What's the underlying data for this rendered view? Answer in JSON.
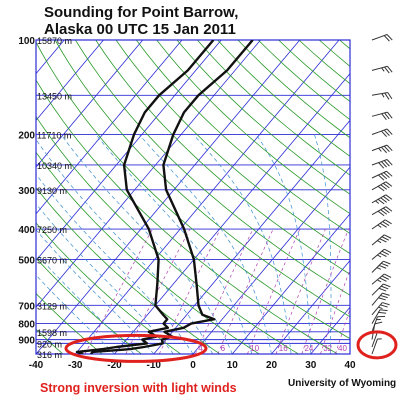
{
  "title_lines": [
    "Sounding for Point Barrow,",
    "Alaska 00 UTC 15 Jan 2011"
  ],
  "caption": "Strong inversion with light winds",
  "credit": "University of Wyoming",
  "colors": {
    "frame": "#2b2bd6",
    "isobar": "#2b2bd6",
    "isotherm": "#2b2bd6",
    "dry_adiabat": "#2a9a2a",
    "moist_adiabat": "#3a8fd0",
    "mixing_ratio": "#b040b0",
    "sounding": "#111111",
    "highlight": "#e0221f"
  },
  "chart_data": {
    "type": "line",
    "title": "Sounding for Point Barrow, Alaska 00 UTC 15 Jan 2011",
    "xlabel": "",
    "ylabel": "",
    "x_ticks": [
      -40,
      -30,
      -20,
      -10,
      0,
      10,
      20,
      30,
      40
    ],
    "xlim": [
      -40,
      40
    ],
    "ylim": [
      1000,
      100
    ],
    "y_scale": "log",
    "pressure_ticks": [
      {
        "p": 100,
        "label": "100",
        "height": "15870 m"
      },
      {
        "p": 150,
        "label": "",
        "height": "13450 m"
      },
      {
        "p": 200,
        "label": "200",
        "height": "11710 m"
      },
      {
        "p": 250,
        "label": "",
        "height": "10340 m"
      },
      {
        "p": 300,
        "label": "300",
        "height": "9130 m"
      },
      {
        "p": 400,
        "label": "400",
        "height": "7250 m"
      },
      {
        "p": 500,
        "label": "500",
        "height": "5670 m"
      },
      {
        "p": 700,
        "label": "700",
        "height": "3129 m"
      },
      {
        "p": 800,
        "label": "800",
        "height": ""
      },
      {
        "p": 850,
        "label": "",
        "height": "1598 m"
      },
      {
        "p": 900,
        "label": "900",
        "height": ""
      },
      {
        "p": 925,
        "label": "",
        "height": "920 m"
      },
      {
        "p": 1000,
        "label": "",
        "height": "316 m"
      }
    ],
    "mixing_ratio_labels": [
      "4",
      "6",
      "10",
      "16",
      "24",
      "32",
      "40"
    ],
    "series": [
      {
        "points": [
          {
            "p": 1000,
            "t": -26
          },
          {
            "p": 985,
            "t": -26
          },
          {
            "p": 965,
            "t": -17
          },
          {
            "p": 950,
            "t": -14
          },
          {
            "p": 925,
            "t": -10
          },
          {
            "p": 900,
            "t": -11
          },
          {
            "p": 880,
            "t": -9
          },
          {
            "p": 850,
            "t": -12
          },
          {
            "p": 825,
            "t": -8
          },
          {
            "p": 800,
            "t": -7
          },
          {
            "p": 775,
            "t": -2
          },
          {
            "p": 750,
            "t": -6
          },
          {
            "p": 700,
            "t": -9
          },
          {
            "p": 600,
            "t": -14
          },
          {
            "p": 500,
            "t": -20
          },
          {
            "p": 400,
            "t": -29
          },
          {
            "p": 300,
            "t": -42
          },
          {
            "p": 250,
            "t": -48
          },
          {
            "p": 200,
            "t": -52
          },
          {
            "p": 170,
            "t": -54
          },
          {
            "p": 150,
            "t": -54
          },
          {
            "p": 125,
            "t": -52
          },
          {
            "p": 100,
            "t": -52
          }
        ]
      },
      {
        "points": [
          {
            "p": 1000,
            "t": -28
          },
          {
            "p": 985,
            "t": -30
          },
          {
            "p": 965,
            "t": -24
          },
          {
            "p": 950,
            "t": -21
          },
          {
            "p": 925,
            "t": -14
          },
          {
            "p": 900,
            "t": -16
          },
          {
            "p": 880,
            "t": -13
          },
          {
            "p": 850,
            "t": -16
          },
          {
            "p": 825,
            "t": -12
          },
          {
            "p": 800,
            "t": -14
          },
          {
            "p": 775,
            "t": -14
          },
          {
            "p": 750,
            "t": -16
          },
          {
            "p": 700,
            "t": -20
          },
          {
            "p": 600,
            "t": -24
          },
          {
            "p": 500,
            "t": -29
          },
          {
            "p": 400,
            "t": -38
          },
          {
            "p": 300,
            "t": -52
          },
          {
            "p": 250,
            "t": -58
          },
          {
            "p": 200,
            "t": -62
          },
          {
            "p": 170,
            "t": -64
          },
          {
            "p": 150,
            "t": -64
          },
          {
            "p": 125,
            "t": -62
          },
          {
            "p": 100,
            "t": -62
          }
        ]
      }
    ],
    "wind_barbs": [
      {
        "p": 100,
        "dir_deg": 250,
        "speed_kt": 20
      },
      {
        "p": 125,
        "dir_deg": 255,
        "speed_kt": 25
      },
      {
        "p": 150,
        "dir_deg": 260,
        "speed_kt": 25
      },
      {
        "p": 175,
        "dir_deg": 255,
        "speed_kt": 30
      },
      {
        "p": 200,
        "dir_deg": 250,
        "speed_kt": 30
      },
      {
        "p": 225,
        "dir_deg": 250,
        "speed_kt": 35
      },
      {
        "p": 250,
        "dir_deg": 250,
        "speed_kt": 40
      },
      {
        "p": 275,
        "dir_deg": 245,
        "speed_kt": 40
      },
      {
        "p": 300,
        "dir_deg": 240,
        "speed_kt": 40
      },
      {
        "p": 330,
        "dir_deg": 240,
        "speed_kt": 45
      },
      {
        "p": 360,
        "dir_deg": 240,
        "speed_kt": 40
      },
      {
        "p": 400,
        "dir_deg": 235,
        "speed_kt": 35
      },
      {
        "p": 450,
        "dir_deg": 230,
        "speed_kt": 35
      },
      {
        "p": 500,
        "dir_deg": 230,
        "speed_kt": 35
      },
      {
        "p": 550,
        "dir_deg": 225,
        "speed_kt": 35
      },
      {
        "p": 600,
        "dir_deg": 230,
        "speed_kt": 35
      },
      {
        "p": 650,
        "dir_deg": 225,
        "speed_kt": 30
      },
      {
        "p": 700,
        "dir_deg": 220,
        "speed_kt": 30
      },
      {
        "p": 750,
        "dir_deg": 220,
        "speed_kt": 25
      },
      {
        "p": 800,
        "dir_deg": 210,
        "speed_kt": 20
      },
      {
        "p": 850,
        "dir_deg": 200,
        "speed_kt": 15
      },
      {
        "p": 900,
        "dir_deg": 190,
        "speed_kt": 10
      },
      {
        "p": 950,
        "dir_deg": 200,
        "speed_kt": 5
      },
      {
        "p": 1000,
        "dir_deg": 200,
        "speed_kt": 5
      }
    ]
  }
}
